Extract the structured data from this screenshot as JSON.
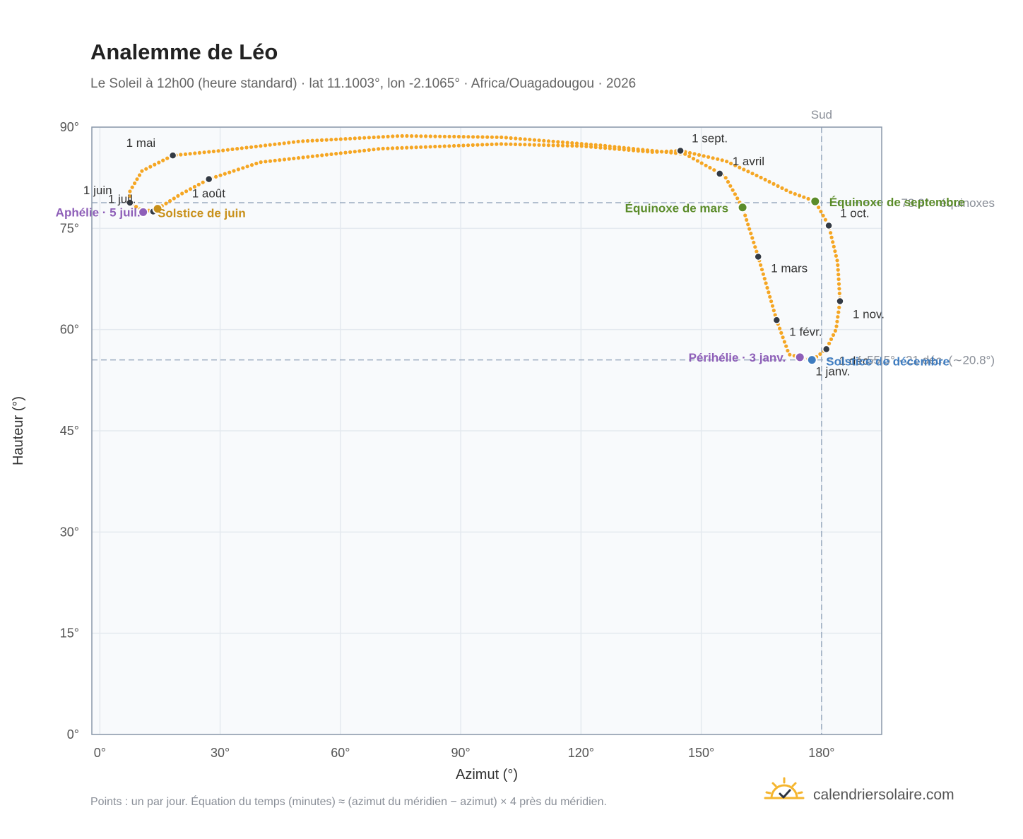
{
  "title": "Analemme de Léo",
  "subtitle": "Le Soleil à 12h00 (heure standard) · lat 11.1003°, lon -2.1065° · Africa/Ouagadougou · 2026",
  "footnote": "Points : un par jour. Équation du temps (minutes) ≈ (azimut du méridien − azimut) × 4 près du méridien.",
  "brand": {
    "name": "calendriersolaire.com",
    "logo_icon": "sun-check-icon"
  },
  "colors": {
    "curve": "#f5a623",
    "month_marker": "#333a44",
    "equinox": "#5b8c2a",
    "december_solstice": "#3e7cc0",
    "june_solstice": "#c8901a",
    "apsis": "#8e5fb8",
    "reference_line": "#9aabc0",
    "plot_background": "#f8fafc",
    "grid": "#e4e9ef",
    "frame": "#8a98aa"
  },
  "chart_data": {
    "type": "scatter",
    "xlabel": "Azimut (°)",
    "ylabel": "Hauteur (°)",
    "xlim": [
      -2,
      195
    ],
    "ylim": [
      0,
      90
    ],
    "x_ticks": [
      {
        "value": 0,
        "label": "0°"
      },
      {
        "value": 30,
        "label": "30°"
      },
      {
        "value": 60,
        "label": "60°"
      },
      {
        "value": 90,
        "label": "90°"
      },
      {
        "value": 120,
        "label": "120°"
      },
      {
        "value": 150,
        "label": "150°"
      },
      {
        "value": 180,
        "label": "180°"
      }
    ],
    "y_ticks": [
      {
        "value": 0,
        "label": "0°"
      },
      {
        "value": 15,
        "label": "15°"
      },
      {
        "value": 30,
        "label": "30°"
      },
      {
        "value": 45,
        "label": "45°"
      },
      {
        "value": 60,
        "label": "60°"
      },
      {
        "value": 75,
        "label": "75°"
      },
      {
        "value": 90,
        "label": "90°"
      }
    ],
    "grid": true,
    "legend": "none",
    "daily_path": [
      [
        177.8,
        55.5
      ],
      [
        171.9,
        56.3
      ],
      [
        168.8,
        61.4
      ],
      [
        164.2,
        70.8
      ],
      [
        160.3,
        78.1
      ],
      [
        155.8,
        82.8
      ],
      [
        146.0,
        86.0
      ],
      [
        125.0,
        87.3
      ],
      [
        100.0,
        88.5
      ],
      [
        75.0,
        88.7
      ],
      [
        50.0,
        87.9
      ],
      [
        30.0,
        86.5
      ],
      [
        18.2,
        85.8
      ],
      [
        10.5,
        83.5
      ],
      [
        7.5,
        80.5
      ],
      [
        7.4,
        78.8
      ],
      [
        11.0,
        77.5
      ],
      [
        14.4,
        77.9
      ],
      [
        20.0,
        80.0
      ],
      [
        27.2,
        82.3
      ],
      [
        40.0,
        84.8
      ],
      [
        70.0,
        86.8
      ],
      [
        100.0,
        87.5
      ],
      [
        120.0,
        87.2
      ],
      [
        138.0,
        86.3
      ],
      [
        144.8,
        86.5
      ],
      [
        156.0,
        85.0
      ],
      [
        165.0,
        82.5
      ],
      [
        172.0,
        80.4
      ],
      [
        178.4,
        79.0
      ],
      [
        181.8,
        75.4
      ],
      [
        184.0,
        70.0
      ],
      [
        184.6,
        64.2
      ],
      [
        183.6,
        60.0
      ],
      [
        181.2,
        57.1
      ],
      [
        177.8,
        55.5
      ]
    ],
    "reference_lines": [
      {
        "axis": "y",
        "value": 78.8,
        "label": "78.8° · équinoxes"
      },
      {
        "axis": "y",
        "value": 55.5,
        "label": "55.5° · 21 déc. (∼20.8°)"
      },
      {
        "axis": "x",
        "value": 180,
        "label": "Sud"
      }
    ],
    "month_markers": [
      {
        "label": "1 janv.",
        "x": 177.8,
        "y": 55.5
      },
      {
        "label": "1 févr.",
        "x": 168.8,
        "y": 61.4
      },
      {
        "label": "1 mars",
        "x": 164.2,
        "y": 70.8
      },
      {
        "label": "1 avril",
        "x": 154.6,
        "y": 83.1
      },
      {
        "label": "1 mai",
        "x": 18.2,
        "y": 85.8
      },
      {
        "label": "1 juin",
        "x": 7.5,
        "y": 78.8
      },
      {
        "label": "1 juil.",
        "x": 13.3,
        "y": 77.5
      },
      {
        "label": "1 août",
        "x": 27.2,
        "y": 82.3
      },
      {
        "label": "1 sept.",
        "x": 144.8,
        "y": 86.5
      },
      {
        "label": "1 oct.",
        "x": 181.8,
        "y": 75.4
      },
      {
        "label": "1 nov.",
        "x": 184.6,
        "y": 64.2
      },
      {
        "label": "1 déc.",
        "x": 181.2,
        "y": 57.1
      }
    ],
    "events": [
      {
        "label": "Équinoxe de mars",
        "x": 160.3,
        "y": 78.1,
        "color": "#5b8c2a"
      },
      {
        "label": "Équinoxe de septembre",
        "x": 178.4,
        "y": 79.0,
        "color": "#5b8c2a"
      },
      {
        "label": "Solstice de juin",
        "x": 14.4,
        "y": 77.9,
        "color": "#c8901a"
      },
      {
        "label": "Solstice de décembre",
        "x": 177.6,
        "y": 55.5,
        "color": "#3e7cc0"
      },
      {
        "label": "Aphélie · 5 juil.",
        "x": 10.8,
        "y": 77.4,
        "color": "#8e5fb8"
      },
      {
        "label": "Périhélie · 3 janv.",
        "x": 174.6,
        "y": 55.9,
        "color": "#8e5fb8"
      }
    ]
  }
}
